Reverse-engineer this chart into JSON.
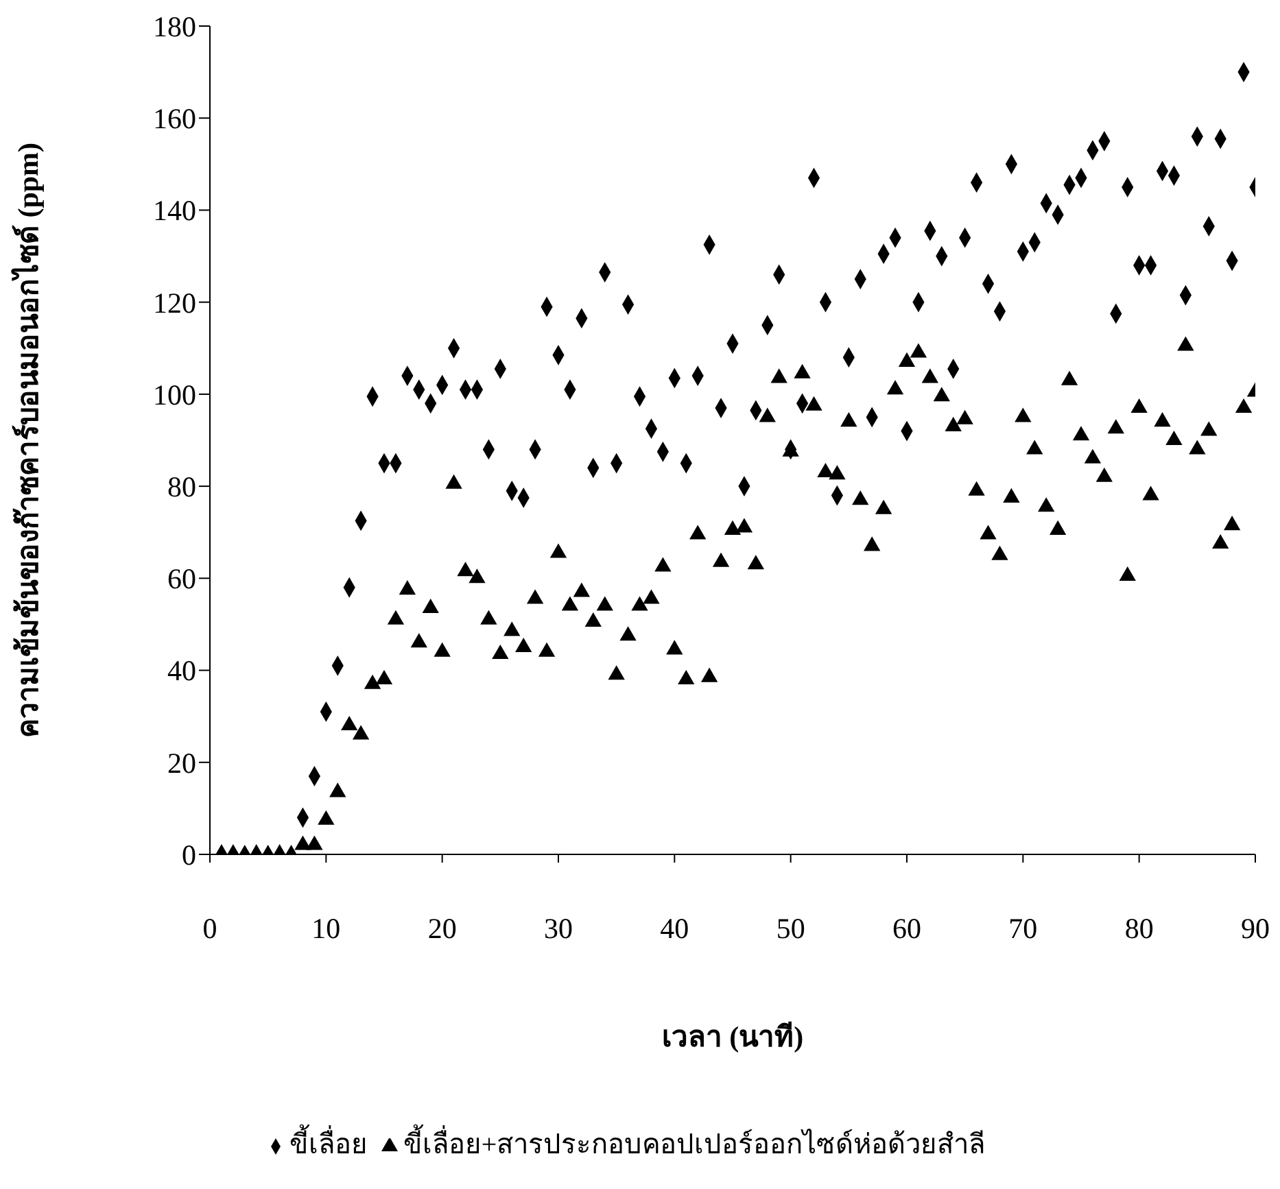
{
  "chart_data": {
    "type": "scatter",
    "xlabel": "เวลา (นาที)",
    "ylabel": "ความเข้มข้นของก๊าซคาร์บอนมอนอกไซด์ (ppm)",
    "x": [
      1,
      2,
      3,
      4,
      5,
      6,
      7,
      8,
      9,
      10,
      11,
      12,
      13,
      14,
      15,
      16,
      17,
      18,
      19,
      20,
      21,
      22,
      23,
      24,
      25,
      26,
      27,
      28,
      29,
      30,
      31,
      32,
      33,
      34,
      35,
      36,
      37,
      38,
      39,
      40,
      41,
      42,
      43,
      44,
      45,
      46,
      47,
      48,
      49,
      50,
      51,
      52,
      53,
      54,
      55,
      56,
      57,
      58,
      59,
      60,
      61,
      62,
      63,
      64,
      65,
      66,
      67,
      68,
      69,
      70,
      71,
      72,
      73,
      74,
      75,
      76,
      77,
      78,
      79,
      80,
      81,
      82,
      83,
      84,
      85,
      86,
      87,
      88,
      89,
      90
    ],
    "series": [
      {
        "name": "ขี้เลื่อย",
        "color": "#000000",
        "marker": "diamond",
        "values": [
          0,
          0,
          null,
          0,
          null,
          0,
          null,
          8,
          17,
          31,
          41,
          58,
          72.5,
          99.5,
          85,
          85,
          104,
          101,
          98,
          102,
          110,
          101,
          101,
          88,
          105.5,
          79,
          77.5,
          88,
          119,
          108.5,
          101,
          116.5,
          84,
          126.5,
          85,
          119.5,
          99.5,
          92.5,
          87.5,
          103.5,
          85,
          104,
          132.5,
          97,
          111,
          80,
          96.5,
          115,
          126,
          88,
          98,
          147,
          120,
          78,
          108,
          125,
          95,
          130.5,
          134,
          92,
          120,
          135.5,
          130,
          105.5,
          134,
          146,
          124,
          118,
          150,
          131,
          133,
          141.5,
          139,
          145.5,
          147,
          153,
          155,
          117.5,
          145,
          128,
          128,
          148.5,
          147.5,
          121.5,
          156,
          136.5,
          155.5,
          129,
          170,
          145
        ]
      },
      {
        "name": "ขี้เลื่อย+สารประกอบคอปเปอร์ออกไซด์ห่อด้วยสำลี",
        "color": "#000000",
        "marker": "triangle",
        "values": [
          null,
          null,
          0,
          null,
          0,
          null,
          0,
          2,
          2,
          7.5,
          13.5,
          28,
          26,
          37,
          38,
          51,
          57.5,
          46,
          53.5,
          44,
          80.5,
          61.5,
          60,
          51,
          43.5,
          48.5,
          45,
          55.5,
          44,
          65.5,
          54,
          57,
          50.5,
          54,
          39,
          47.5,
          54,
          55.5,
          62.5,
          44.5,
          38,
          69.5,
          38.5,
          63.5,
          70.5,
          71,
          63,
          95,
          103.5,
          87.5,
          104.5,
          97.5,
          83,
          82.5,
          94,
          77,
          67,
          75,
          101,
          107,
          109,
          103.5,
          99.5,
          93,
          94.5,
          79,
          69.5,
          65,
          77.5,
          95,
          88,
          75.5,
          70.5,
          103,
          91,
          86,
          82,
          92.5,
          60.5,
          97,
          78,
          94,
          90,
          110.5,
          88,
          92,
          67.5,
          71.5,
          97,
          100.5
        ]
      }
    ],
    "xlim": [
      0,
      90
    ],
    "xticks": [
      0,
      10,
      20,
      30,
      40,
      50,
      60,
      70,
      80,
      90
    ],
    "ylim": [
      0,
      180
    ],
    "yticks": [
      0,
      20,
      40,
      60,
      80,
      100,
      120,
      140,
      160,
      180
    ],
    "grid": false,
    "legend": "bottom"
  }
}
